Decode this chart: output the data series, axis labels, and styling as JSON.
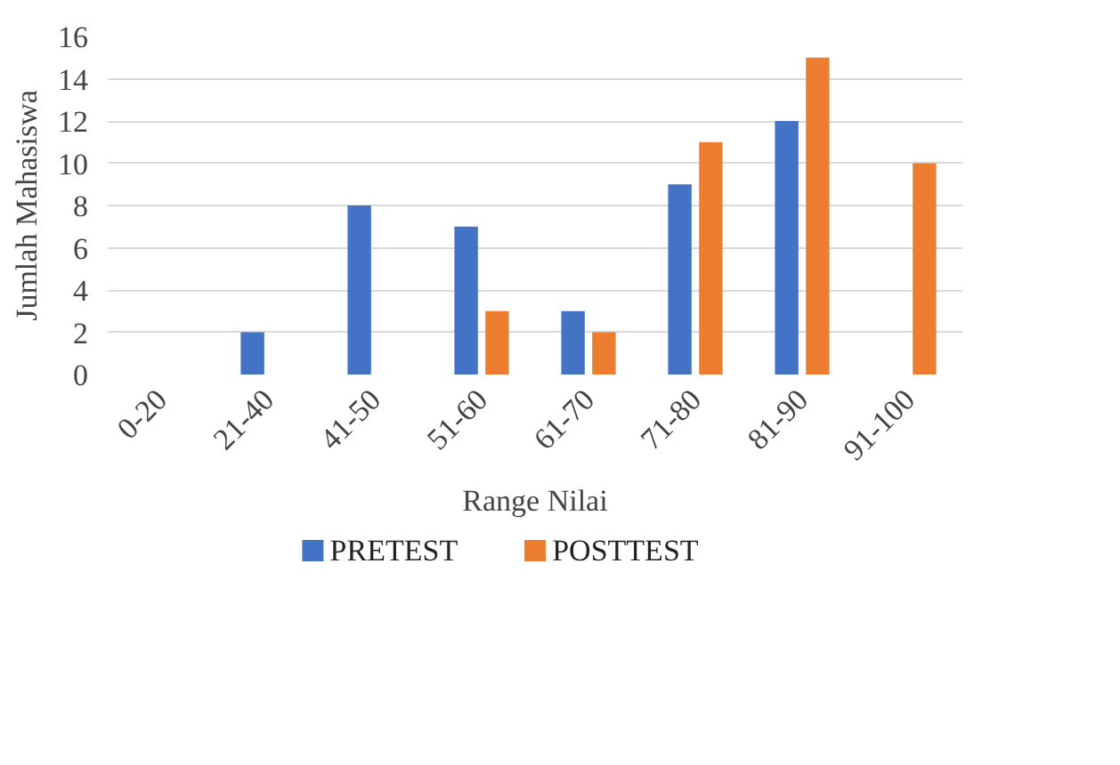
{
  "chart_data": {
    "type": "bar",
    "xlabel": "Range Nilai",
    "ylabel": "Jumlah Mahasiswa",
    "categories": [
      "0-20",
      "21-40",
      "41-50",
      "51-60",
      "61-70",
      "71-80",
      "81-90",
      "91-100"
    ],
    "series": [
      {
        "name": "PRETEST",
        "color": "#4472c4",
        "values": [
          0,
          2,
          8,
          7,
          3,
          9,
          12,
          0
        ]
      },
      {
        "name": "POSTTEST",
        "color": "#ed7d31",
        "values": [
          0,
          0,
          0,
          3,
          2,
          11,
          15,
          10
        ]
      }
    ],
    "ylim": [
      0,
      16
    ],
    "yticks": [
      0,
      2,
      4,
      6,
      8,
      10,
      12,
      14,
      16
    ],
    "grid": "y",
    "legend": "bottom"
  }
}
